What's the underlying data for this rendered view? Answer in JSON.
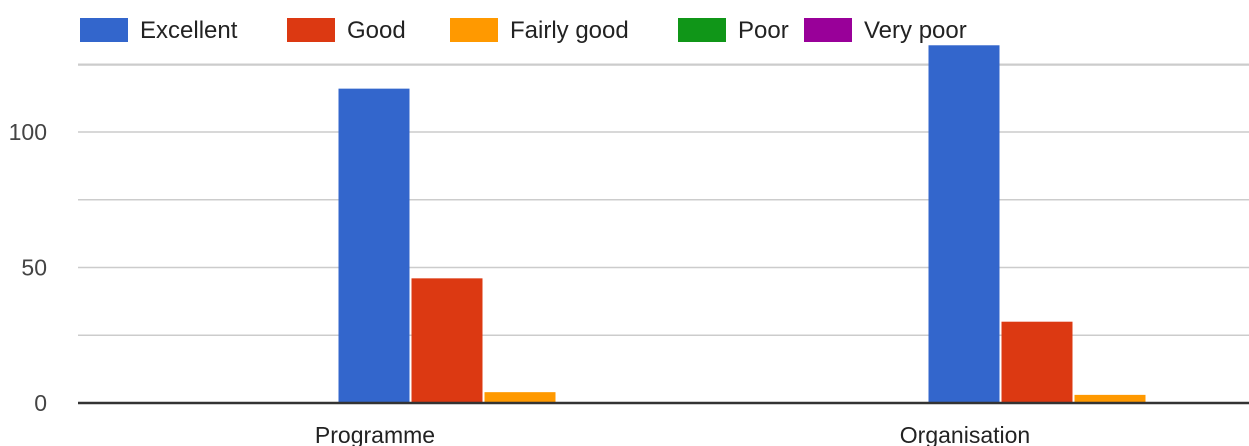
{
  "chart_data": {
    "type": "bar",
    "title": "",
    "xlabel": "",
    "ylabel": "",
    "categories": [
      "Programme",
      "Organisation"
    ],
    "series": [
      {
        "name": "Excellent",
        "color": "#3366cc",
        "values": [
          116,
          132
        ]
      },
      {
        "name": "Good",
        "color": "#dc3912",
        "values": [
          46,
          30
        ]
      },
      {
        "name": "Fairly good",
        "color": "#ff9900",
        "values": [
          4,
          3
        ]
      },
      {
        "name": "Poor",
        "color": "#109618",
        "values": [
          0,
          0
        ]
      },
      {
        "name": "Very poor",
        "color": "#990099",
        "values": [
          0,
          0
        ]
      }
    ],
    "ylim": [
      0,
      130
    ],
    "yticks": [
      0,
      50,
      100
    ],
    "grid": true,
    "legend_position": "top"
  }
}
